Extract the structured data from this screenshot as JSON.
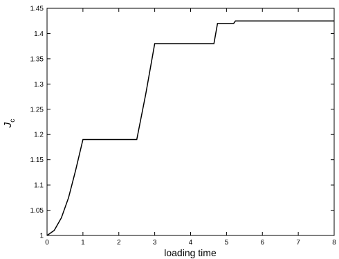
{
  "chart_data": {
    "type": "line",
    "x_label": "loading time",
    "y_label": "J",
    "y_label_sub": "c",
    "x": [
      0,
      0.2,
      0.4,
      0.6,
      0.8,
      1.0,
      2.5,
      2.75,
      3.0,
      4.65,
      4.75,
      5.2,
      5.25,
      8
    ],
    "values": [
      1.0,
      1.01,
      1.035,
      1.075,
      1.13,
      1.19,
      1.19,
      1.28,
      1.38,
      1.38,
      1.42,
      1.42,
      1.425,
      1.425
    ],
    "color": "#000000",
    "xlim": [
      0,
      8
    ],
    "xticks": [
      0,
      1,
      2,
      3,
      4,
      5,
      6,
      7,
      8
    ],
    "ylim": [
      1,
      1.45
    ],
    "yticks": [
      1,
      1.05,
      1.1,
      1.15,
      1.2,
      1.25,
      1.3,
      1.35,
      1.4,
      1.45
    ],
    "grid": false
  }
}
